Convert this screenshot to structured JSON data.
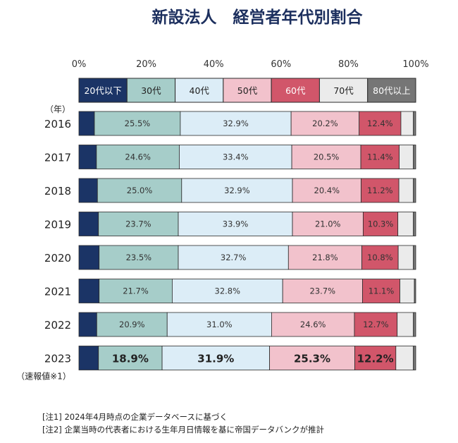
{
  "chart_data": {
    "type": "bar",
    "orientation": "horizontal",
    "stacked": true,
    "title": "新設法人　経営者年代別割合",
    "x_ticks": [
      "0%",
      "20%",
      "40%",
      "60%",
      "80%",
      "100%"
    ],
    "xlim": [
      0,
      100
    ],
    "legend_position": "top",
    "y_unit_label": "（年）",
    "categories": [
      "2016",
      "2017",
      "2018",
      "2019",
      "2020",
      "2021",
      "2022",
      "2023"
    ],
    "category_notes": [
      "",
      "",
      "",
      "",
      "",
      "",
      "",
      "（速報値※1）"
    ],
    "series": [
      {
        "name": "20代以下",
        "color": "#1b3466",
        "label_color": "#ffffff",
        "values": [
          4.6,
          5.2,
          5.5,
          5.8,
          6.0,
          6.0,
          5.3,
          5.8
        ]
      },
      {
        "name": "30代",
        "color": "#a6cdc9",
        "label_color": "#222222",
        "values": [
          25.5,
          24.6,
          25.0,
          23.7,
          23.5,
          21.7,
          20.9,
          18.9
        ]
      },
      {
        "name": "40代",
        "color": "#dcedf7",
        "label_color": "#222222",
        "values": [
          32.9,
          33.4,
          32.9,
          33.9,
          32.7,
          32.8,
          31.0,
          31.9
        ]
      },
      {
        "name": "50代",
        "color": "#f2c2cc",
        "label_color": "#222222",
        "values": [
          20.2,
          20.5,
          20.4,
          21.0,
          21.8,
          23.7,
          24.6,
          25.3
        ]
      },
      {
        "name": "60代",
        "color": "#d1566a",
        "label_color": "#ffffff",
        "values": [
          12.4,
          11.4,
          11.2,
          10.3,
          10.8,
          11.1,
          12.7,
          12.2
        ]
      },
      {
        "name": "70代",
        "color": "#ebebeb",
        "label_color": "#222222",
        "values": [
          3.7,
          4.2,
          4.3,
          4.6,
          4.5,
          4.3,
          4.8,
          5.2
        ]
      },
      {
        "name": "80代以上",
        "color": "#767676",
        "label_color": "#ffffff",
        "values": [
          0.7,
          0.7,
          0.7,
          0.7,
          0.7,
          0.4,
          0.7,
          0.7
        ]
      }
    ],
    "data_labels": [
      [
        "",
        "25.5%",
        "32.9%",
        "20.2%",
        "12.4%",
        "",
        ""
      ],
      [
        "",
        "24.6%",
        "33.4%",
        "20.5%",
        "11.4%",
        "",
        ""
      ],
      [
        "",
        "25.0%",
        "32.9%",
        "20.4%",
        "11.2%",
        "",
        ""
      ],
      [
        "",
        "23.7%",
        "33.9%",
        "21.0%",
        "10.3%",
        "",
        ""
      ],
      [
        "",
        "23.5%",
        "32.7%",
        "21.8%",
        "10.8%",
        "",
        ""
      ],
      [
        "",
        "21.7%",
        "32.8%",
        "23.7%",
        "11.1%",
        "",
        ""
      ],
      [
        "",
        "20.9%",
        "31.0%",
        "24.6%",
        "12.7%",
        "",
        ""
      ],
      [
        "",
        "18.9%",
        "31.9%",
        "25.3%",
        "12.2%",
        "",
        ""
      ]
    ]
  },
  "notes": [
    "[注1] 2024年4月時点の企業データベースに基づく",
    "[注2] 企業当時の代表者における生年月日情報を基に帝国データバンクが推計"
  ]
}
